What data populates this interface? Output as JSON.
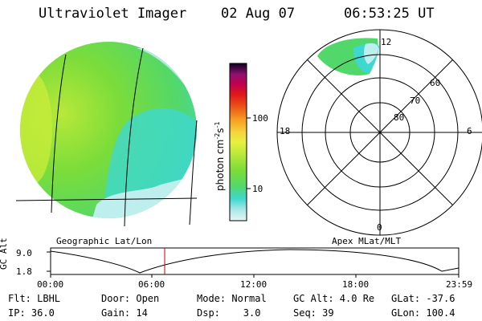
{
  "header": {
    "instrument": "Ultraviolet Imager",
    "date": "02 Aug 07",
    "time": "06:53:25 UT"
  },
  "left_panel": {
    "caption": "Geographic Lat/Lon"
  },
  "colorbar": {
    "unit_label": "photon cm",
    "unit_exp1": "-2",
    "unit_s": "s",
    "unit_exp2": "-1",
    "ticks": [
      "100",
      "10"
    ],
    "scale": "log",
    "colors": [
      "#d9f3f3",
      "#a9e7e7",
      "#3fd8d0",
      "#52d86a",
      "#7bdc3a",
      "#b8e83a",
      "#e8f040",
      "#f5d540",
      "#f5a020",
      "#ec5818",
      "#e01818",
      "#c00050",
      "#901070",
      "#401060",
      "#100020"
    ]
  },
  "polar_panel": {
    "caption": "Apex MLat/MLT",
    "mlt_labels": {
      "top": "12",
      "left": "18",
      "right": "6",
      "bottom": "0"
    },
    "lat_labels": [
      "60",
      "70",
      "80"
    ]
  },
  "altitude_plot": {
    "ylabel_line1": "GC",
    "ylabel_line2": "Alt",
    "y_ticks": [
      "9.0",
      "1.8"
    ],
    "x_ticks": [
      "00:00",
      "06:00",
      "12:00",
      "18:00",
      "23:59"
    ],
    "marker_color": "#cc0000"
  },
  "footer": {
    "row1": [
      "Flt: LBHL",
      "Door: Open",
      "Mode: Normal",
      "GC Alt: 4.0 Re",
      "GLat: -37.6"
    ],
    "row2": [
      "IP: 36.0",
      "Gain: 14",
      "Dsp:    3.0",
      "Seq: 39",
      "GLon: 100.4"
    ]
  },
  "palette": {
    "image_green": "#7bdc3a",
    "image_light": "#bfeeee",
    "image_teal": "#3fd8d0"
  }
}
